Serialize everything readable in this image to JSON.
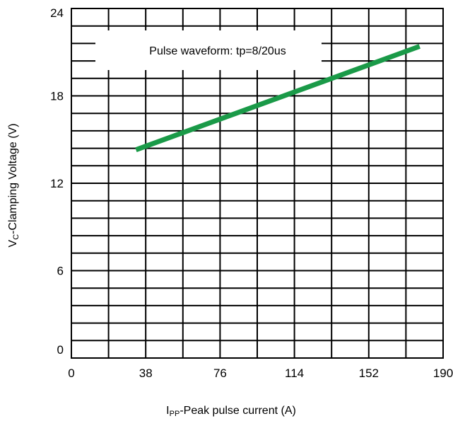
{
  "chart_data": {
    "type": "line",
    "title": "",
    "xlabel_main": "I",
    "xlabel_sub": "PP",
    "xlabel_rest": "-Peak pulse current (A)",
    "ylabel_main": "V",
    "ylabel_sub": "C",
    "ylabel_rest": "-Clamping Voltage (V)",
    "xlim": [
      0,
      190
    ],
    "ylim": [
      0,
      24
    ],
    "x_ticks": [
      "0",
      "38",
      "76",
      "114",
      "152",
      "190"
    ],
    "y_ticks": [
      "0",
      "6",
      "12",
      "18",
      "24"
    ],
    "x_tick_values": [
      0,
      38,
      76,
      114,
      152,
      190
    ],
    "y_tick_values": [
      0,
      6,
      12,
      18,
      24
    ],
    "x_grid_step": 19,
    "y_grid_step": 1.2,
    "grid": true,
    "annotation": "Pulse waveform: tp=8/20us",
    "series": [
      {
        "color": "#1a9a48",
        "x": [
          33,
          178
        ],
        "y": [
          14.3,
          21.4
        ]
      }
    ]
  }
}
